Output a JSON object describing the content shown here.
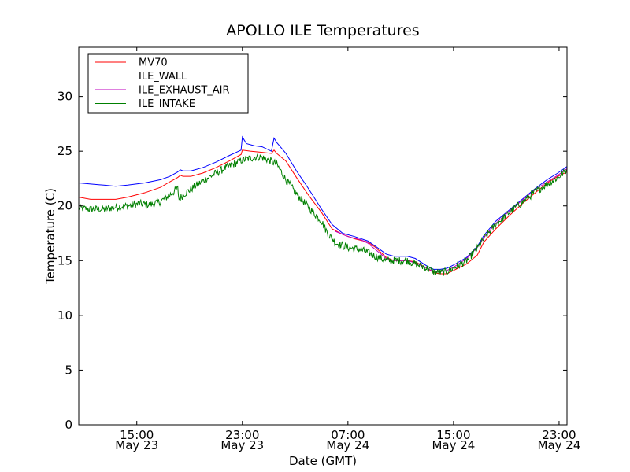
{
  "chart_data": {
    "type": "line",
    "title": "APOLLO ILE Temperatures",
    "xlabel": "Date (GMT)",
    "ylabel": "Temperature (C)",
    "xlim": [
      10.6,
      47.6
    ],
    "ylim": [
      0,
      34.5
    ],
    "grid": false,
    "legend_position": "top-left",
    "x_unit_note": "hours since May 23 00:00 GMT",
    "y_ticks": [
      {
        "value": 0,
        "label": "0"
      },
      {
        "value": 5,
        "label": "5"
      },
      {
        "value": 10,
        "label": "10"
      },
      {
        "value": 15,
        "label": "15"
      },
      {
        "value": 20,
        "label": "20"
      },
      {
        "value": 25,
        "label": "25"
      },
      {
        "value": 30,
        "label": "30"
      }
    ],
    "x_ticks": [
      {
        "value": 15,
        "time": "15:00",
        "date": "May 23"
      },
      {
        "value": 23,
        "time": "23:00",
        "date": "May 23"
      },
      {
        "value": 31,
        "time": "07:00",
        "date": "May 24"
      },
      {
        "value": 39,
        "time": "15:00",
        "date": "May 24"
      },
      {
        "value": 47,
        "time": "23:00",
        "date": "May 24"
      }
    ],
    "series": [
      {
        "name": "MV70",
        "color": "#ff0000",
        "points": [
          [
            10.6,
            20.8
          ],
          [
            11.5,
            20.6
          ],
          [
            12.5,
            20.6
          ],
          [
            13.4,
            20.6
          ],
          [
            14.3,
            20.8
          ],
          [
            15.6,
            21.2
          ],
          [
            16.8,
            21.7
          ],
          [
            17.5,
            22.2
          ],
          [
            18.1,
            22.6
          ],
          [
            18.3,
            22.8
          ],
          [
            18.5,
            22.7
          ],
          [
            19.1,
            22.7
          ],
          [
            20.0,
            23.0
          ],
          [
            21.0,
            23.5
          ],
          [
            22.0,
            24.1
          ],
          [
            22.9,
            24.7
          ],
          [
            23.0,
            25.1
          ],
          [
            23.6,
            25.0
          ],
          [
            24.5,
            24.9
          ],
          [
            25.2,
            24.8
          ],
          [
            25.4,
            25.1
          ],
          [
            25.6,
            24.8
          ],
          [
            26.3,
            24.1
          ],
          [
            27.1,
            22.6
          ],
          [
            28.0,
            21.0
          ],
          [
            29.0,
            19.4
          ],
          [
            29.8,
            17.9
          ],
          [
            30.6,
            17.4
          ],
          [
            31.5,
            17.0
          ],
          [
            32.5,
            16.7
          ],
          [
            33.1,
            16.2
          ],
          [
            33.9,
            15.3
          ],
          [
            34.5,
            15.0
          ],
          [
            35.5,
            15.0
          ],
          [
            36.1,
            14.9
          ],
          [
            37.0,
            14.3
          ],
          [
            37.5,
            13.9
          ],
          [
            38.0,
            13.8
          ],
          [
            38.5,
            13.8
          ],
          [
            39.0,
            14.1
          ],
          [
            40.0,
            14.7
          ],
          [
            40.8,
            15.5
          ],
          [
            41.3,
            16.7
          ],
          [
            42.2,
            17.9
          ],
          [
            43.3,
            19.2
          ],
          [
            44.3,
            20.3
          ],
          [
            45.2,
            21.2
          ],
          [
            46.1,
            22.1
          ],
          [
            46.9,
            22.7
          ],
          [
            47.6,
            23.1
          ]
        ]
      },
      {
        "name": "ILE_WALL",
        "color": "#0000ff",
        "points": [
          [
            10.6,
            22.1
          ],
          [
            11.5,
            22.0
          ],
          [
            12.5,
            21.9
          ],
          [
            13.4,
            21.8
          ],
          [
            14.3,
            21.9
          ],
          [
            15.6,
            22.1
          ],
          [
            16.8,
            22.4
          ],
          [
            17.5,
            22.7
          ],
          [
            18.1,
            23.1
          ],
          [
            18.3,
            23.3
          ],
          [
            18.5,
            23.2
          ],
          [
            19.1,
            23.2
          ],
          [
            20.0,
            23.5
          ],
          [
            21.0,
            24.0
          ],
          [
            22.0,
            24.6
          ],
          [
            22.9,
            25.1
          ],
          [
            23.0,
            26.3
          ],
          [
            23.3,
            25.7
          ],
          [
            23.9,
            25.5
          ],
          [
            24.5,
            25.4
          ],
          [
            25.2,
            25.0
          ],
          [
            25.4,
            26.2
          ],
          [
            25.6,
            25.8
          ],
          [
            26.3,
            24.8
          ],
          [
            27.1,
            23.2
          ],
          [
            28.0,
            21.6
          ],
          [
            29.0,
            19.7
          ],
          [
            29.8,
            18.3
          ],
          [
            30.6,
            17.5
          ],
          [
            31.5,
            17.2
          ],
          [
            32.5,
            16.8
          ],
          [
            33.1,
            16.3
          ],
          [
            33.9,
            15.6
          ],
          [
            34.5,
            15.4
          ],
          [
            35.5,
            15.4
          ],
          [
            36.1,
            15.2
          ],
          [
            37.0,
            14.5
          ],
          [
            37.5,
            14.2
          ],
          [
            38.0,
            14.2
          ],
          [
            38.5,
            14.3
          ],
          [
            39.0,
            14.6
          ],
          [
            40.0,
            15.3
          ],
          [
            40.8,
            16.3
          ],
          [
            41.3,
            17.3
          ],
          [
            42.2,
            18.6
          ],
          [
            43.3,
            19.7
          ],
          [
            44.3,
            20.7
          ],
          [
            45.2,
            21.6
          ],
          [
            46.1,
            22.4
          ],
          [
            46.9,
            23.0
          ],
          [
            47.6,
            23.6
          ]
        ]
      },
      {
        "name": "ILE_EXHAUST_AIR",
        "color": "#bf00bf",
        "points": [
          [
            30.0,
            17.7
          ],
          [
            31.0,
            17.2
          ],
          [
            32.0,
            16.9
          ],
          [
            32.5,
            16.6
          ],
          [
            33.1,
            16.0
          ],
          [
            33.9,
            15.2
          ],
          [
            34.5,
            15.0
          ],
          [
            35.5,
            15.0
          ],
          [
            36.1,
            14.8
          ],
          [
            37.0,
            14.3
          ],
          [
            37.5,
            14.0
          ],
          [
            38.0,
            14.0
          ],
          [
            38.5,
            14.1
          ],
          [
            39.0,
            14.4
          ],
          [
            40.0,
            15.2
          ],
          [
            40.8,
            16.2
          ],
          [
            41.3,
            17.1
          ],
          [
            42.2,
            18.4
          ],
          [
            43.3,
            19.6
          ],
          [
            44.3,
            20.6
          ],
          [
            45.2,
            21.5
          ],
          [
            46.1,
            22.2
          ],
          [
            46.9,
            22.8
          ],
          [
            47.6,
            23.4
          ]
        ]
      },
      {
        "name": "ILE_INTAKE",
        "color": "#008000",
        "points": [
          [
            10.6,
            19.8
          ],
          [
            11.5,
            19.7
          ],
          [
            12.5,
            19.7
          ],
          [
            13.4,
            19.9
          ],
          [
            14.3,
            20.0
          ],
          [
            15.2,
            20.2
          ],
          [
            16.0,
            20.1
          ],
          [
            16.8,
            20.4
          ],
          [
            17.5,
            21.0
          ],
          [
            18.1,
            21.6
          ],
          [
            18.2,
            20.6
          ],
          [
            18.6,
            21.1
          ],
          [
            19.3,
            21.7
          ],
          [
            20.3,
            22.5
          ],
          [
            21.3,
            23.2
          ],
          [
            22.3,
            23.8
          ],
          [
            23.0,
            24.2
          ],
          [
            23.8,
            24.4
          ],
          [
            24.3,
            24.5
          ],
          [
            25.0,
            24.2
          ],
          [
            25.6,
            23.8
          ],
          [
            26.3,
            22.4
          ],
          [
            27.1,
            21.1
          ],
          [
            28.0,
            19.9
          ],
          [
            29.0,
            18.6
          ],
          [
            29.5,
            17.4
          ],
          [
            30.1,
            16.6
          ],
          [
            31.0,
            16.2
          ],
          [
            32.0,
            16.0
          ],
          [
            33.1,
            15.4
          ],
          [
            33.9,
            15.0
          ],
          [
            35.5,
            15.0
          ],
          [
            36.1,
            14.7
          ],
          [
            37.0,
            14.3
          ],
          [
            37.5,
            14.0
          ],
          [
            38.0,
            13.9
          ],
          [
            38.5,
            14.0
          ],
          [
            39.0,
            14.3
          ],
          [
            40.0,
            15.0
          ],
          [
            40.8,
            16.1
          ],
          [
            41.3,
            17.0
          ],
          [
            42.2,
            18.3
          ],
          [
            43.3,
            19.5
          ],
          [
            44.3,
            20.4
          ],
          [
            45.2,
            21.3
          ],
          [
            46.1,
            22.0
          ],
          [
            46.9,
            22.6
          ],
          [
            47.6,
            23.3
          ]
        ],
        "noise_amplitude": 0.35
      }
    ]
  }
}
